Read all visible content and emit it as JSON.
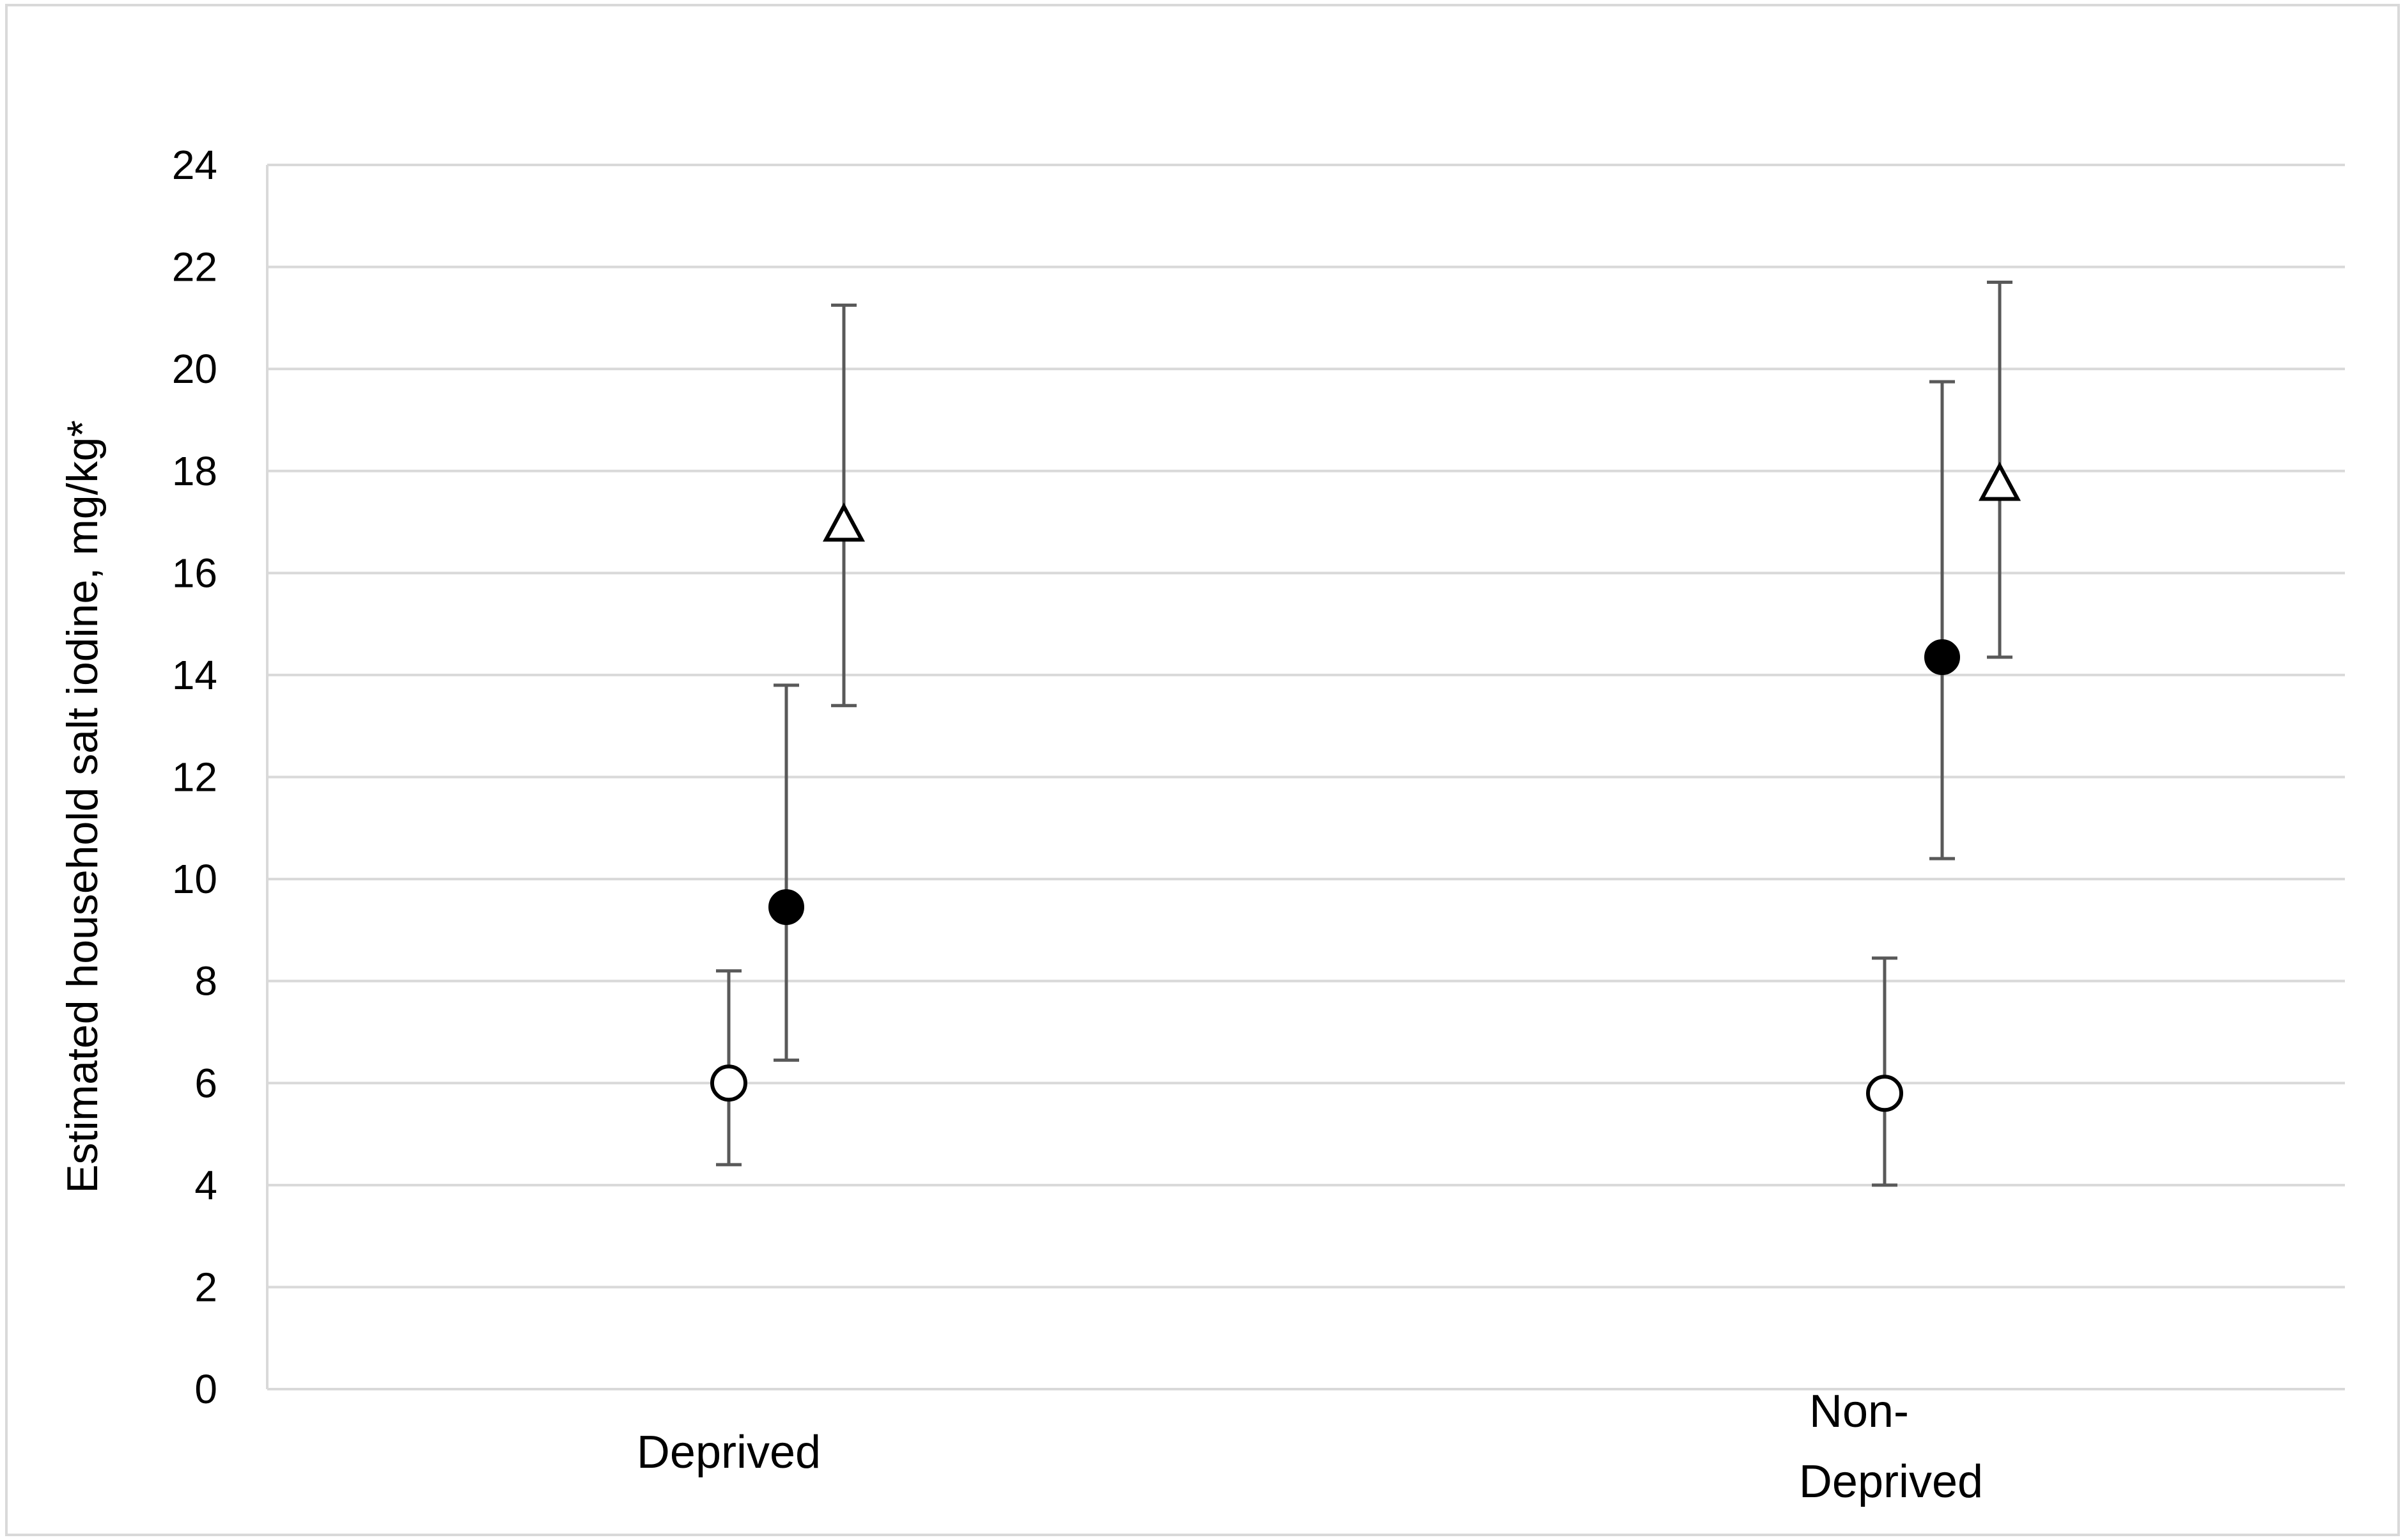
{
  "chart_data": {
    "type": "scatter",
    "title": "",
    "xlabel": "",
    "ylabel": "Estimated household salt iodine, mg/kg*",
    "ylim": [
      0,
      24
    ],
    "yticks": [
      0,
      2,
      4,
      6,
      8,
      10,
      12,
      14,
      16,
      18,
      20,
      22,
      24
    ],
    "ytick_labels": [
      "0",
      "2",
      "4",
      "6",
      "8",
      "10",
      "12",
      "14",
      "16",
      "18",
      "20",
      "22",
      "24"
    ],
    "grid": "horizontal",
    "legend": "none",
    "categories": [
      "Deprived",
      "Non-Deprived"
    ],
    "category_label_lines": [
      [
        "Deprived"
      ],
      [
        "Non-",
        "Deprived"
      ]
    ],
    "series": [
      {
        "marker": "open-circle",
        "color": "#000000",
        "values": [
          6.0,
          5.8
        ],
        "lower": [
          4.4,
          4.0
        ],
        "upper": [
          8.2,
          8.45
        ]
      },
      {
        "marker": "filled-circle",
        "color": "#000000",
        "values": [
          9.45,
          14.35
        ],
        "lower": [
          6.45,
          10.4
        ],
        "upper": [
          13.8,
          19.75
        ]
      },
      {
        "marker": "open-triangle",
        "color": "#000000",
        "values": [
          16.9,
          17.7
        ],
        "lower": [
          13.4,
          14.35
        ],
        "upper": [
          21.25,
          21.7
        ]
      }
    ],
    "colors": {
      "gridline": "#d9d9d9",
      "errorbar": "#595959",
      "frame": "#d9d9d9",
      "marker": "#000000"
    }
  }
}
